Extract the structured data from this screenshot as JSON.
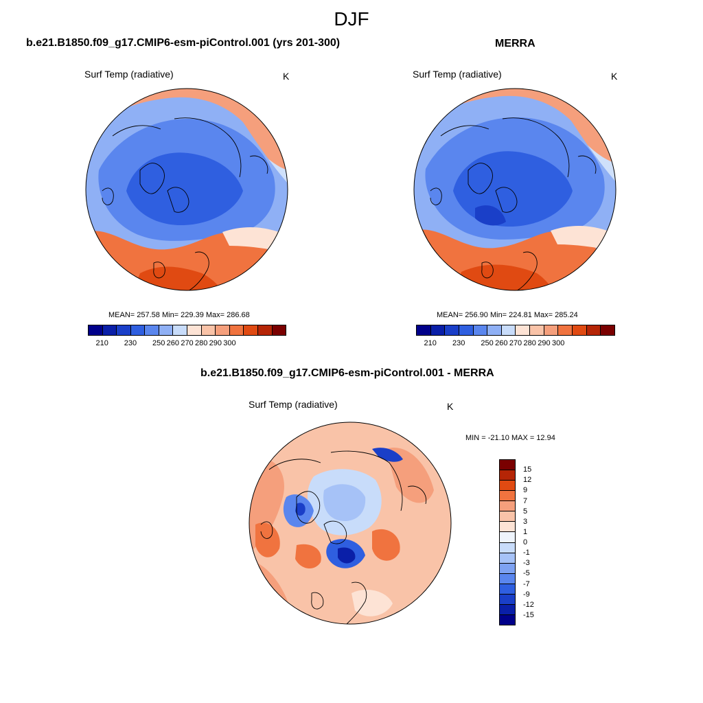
{
  "page_title": "DJF",
  "panels": [
    {
      "title": "b.e21.B1850.f09_g17.CMIP6-esm-piControl.001 (yrs 201-300)",
      "variable": "Surf Temp (radiative)",
      "units": "K",
      "stats": "MEAN= 257.58  Min= 229.39  Max= 286.68",
      "colorbar_ticks": [
        "210",
        "230",
        "250",
        "260",
        "270",
        "280",
        "290",
        "300"
      ]
    },
    {
      "title": "MERRA",
      "variable": "Surf Temp (radiative)",
      "units": "K",
      "stats": "MEAN= 256.90  Min= 224.81  Max= 285.24",
      "colorbar_ticks": [
        "210",
        "230",
        "250",
        "260",
        "270",
        "280",
        "290",
        "300"
      ]
    },
    {
      "title": "b.e21.B1850.f09_g17.CMIP6-esm-piControl.001 - MERRA",
      "variable": "Surf Temp (radiative)",
      "units": "K",
      "stats": "MIN = -21.10 MAX =  12.94",
      "colorbar_ticks": [
        "15",
        "12",
        "9",
        "7",
        "5",
        "3",
        "1",
        "0",
        "-1",
        "-3",
        "-5",
        "-7",
        "-9",
        "-12",
        "-15"
      ]
    }
  ],
  "colors": {
    "abs_scale": [
      "#00008a",
      "#0a1fa8",
      "#1a3fc8",
      "#2f5fe0",
      "#5a86ee",
      "#8fb0f5",
      "#c8dcfa",
      "#fde3d5",
      "#f9c3a8",
      "#f59f7c",
      "#f0733f",
      "#e04a12",
      "#b52506",
      "#7a0000"
    ],
    "diff_scale": [
      "#7a0000",
      "#b52506",
      "#e04a12",
      "#f0733f",
      "#f59f7c",
      "#f9c3a8",
      "#fde3d5",
      "#eef4fc",
      "#c8dcfa",
      "#a6c2f7",
      "#7ea2f2",
      "#5a86ee",
      "#2f5fe0",
      "#1a3fc8",
      "#0a1fa8",
      "#00008a"
    ]
  }
}
